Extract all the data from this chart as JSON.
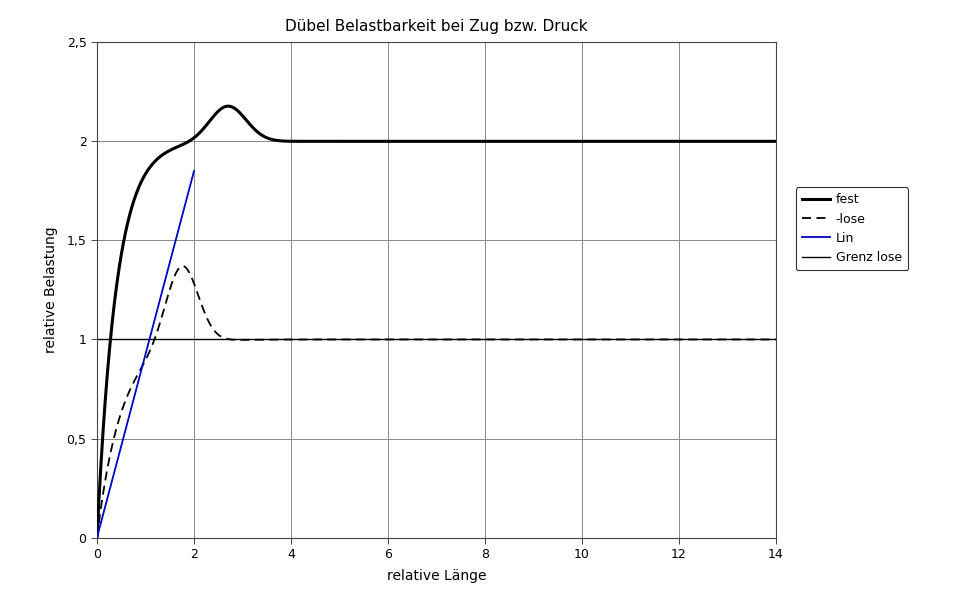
{
  "title": "Dübel Belastbarkeit bei Zug bzw. Druck",
  "xlabel": "relative Länge",
  "ylabel": "relative Belastung",
  "xlim": [
    0,
    14
  ],
  "ylim": [
    0,
    2.5
  ],
  "xticks": [
    0,
    2,
    4,
    6,
    8,
    10,
    12,
    14
  ],
  "yticks": [
    0,
    0.5,
    1.0,
    1.5,
    2.0,
    2.5
  ],
  "ytick_labels": [
    "0",
    "0,5",
    "1",
    "1,5",
    "2",
    "2,5"
  ],
  "xtick_labels": [
    "0",
    "2",
    "4",
    "6",
    "8",
    "10",
    "12",
    "14"
  ],
  "legend_labels": [
    "fest",
    "-lose",
    "Lin",
    "Grenz lose"
  ],
  "background_color": "#ffffff",
  "grid_color": "#aaaaaa",
  "fest_color": "#000000",
  "lose_color": "#000000",
  "lin_color": "#0000cc",
  "grenz_color": "#000000"
}
